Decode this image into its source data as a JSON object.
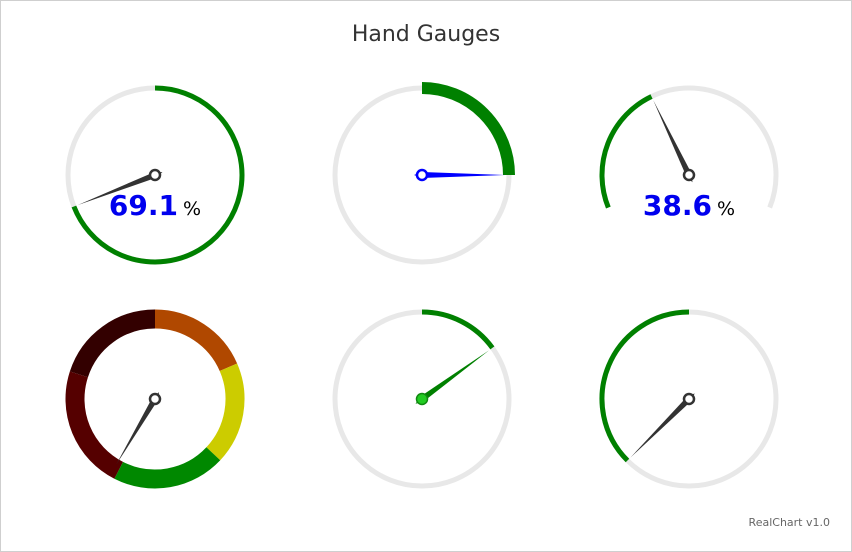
{
  "title": "Hand Gauges",
  "credit": "RealChart v1.0",
  "chart_data": [
    {
      "type": "gauge",
      "value": 69.1,
      "min": 0,
      "max": 100,
      "label": "69.1",
      "unit": "%",
      "label_color": "#0000ee",
      "track_color": "#e8e8e8",
      "band_color": "#008000",
      "hand_color": "#333333",
      "pin_style": "ring",
      "sweep": "full"
    },
    {
      "type": "gauge",
      "value": 25.0,
      "min": 0,
      "max": 100,
      "track_color": "#e8e8e8",
      "band_color": "#008000",
      "hand_color": "#0000ff",
      "pin_style": "ring",
      "sweep": "full",
      "band_thick": true
    },
    {
      "type": "gauge",
      "value": 38.6,
      "min": 0,
      "max": 100,
      "label": "38.6",
      "unit": "%",
      "label_color": "#0000ee",
      "track_color": "#e8e8e8",
      "band_color": "#008000",
      "hand_color": "#333333",
      "pin_style": "ring",
      "sweep": "partial"
    },
    {
      "type": "gauge",
      "value": 58.5,
      "min": 0,
      "max": 100,
      "hand_color": "#333333",
      "pin_style": "ring",
      "sweep": "full",
      "bands": [
        {
          "from": 0,
          "to": 18.5,
          "color": "#b04800"
        },
        {
          "from": 18.5,
          "to": 37,
          "color": "#cccc00"
        },
        {
          "from": 37,
          "to": 57.5,
          "color": "#008800"
        },
        {
          "from": 57.5,
          "to": 80,
          "color": "#550000"
        },
        {
          "from": 80,
          "to": 100,
          "color": "#330000"
        }
      ]
    },
    {
      "type": "gauge",
      "value": 15.0,
      "min": 0,
      "max": 100,
      "track_color": "#e8e8e8",
      "band_color": "#008000",
      "hand_color": "#008000",
      "pin_style": "dot",
      "pin_color": "#22cc22",
      "sweep": "full"
    },
    {
      "type": "gauge",
      "value": 62.5,
      "min": 0,
      "max": 100,
      "track_color": "#e8e8e8",
      "band_color": "#008000",
      "hand_color": "#333333",
      "pin_style": "ring",
      "sweep": "full",
      "band_from_value": true
    }
  ]
}
